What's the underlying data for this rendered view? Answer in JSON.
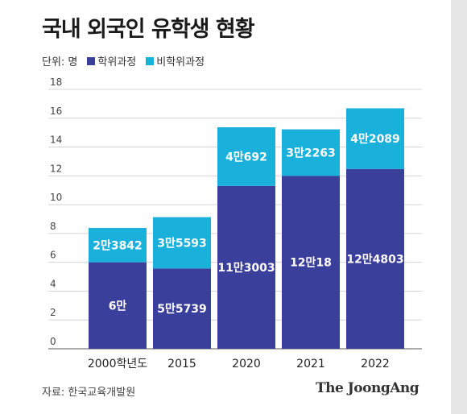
{
  "title": "국내 외국인 유학생 현황",
  "legend": {
    "unit": "단위: 명",
    "items": [
      {
        "label": "학위과정",
        "color": "#3a3f9c"
      },
      {
        "label": "비학위과정",
        "color": "#1ab0dc"
      }
    ]
  },
  "source": "자료: 한국교육개발원",
  "brand": "The JoongAng",
  "chart_data": {
    "type": "bar",
    "stacked": true,
    "categories": [
      "2000학년도",
      "2015",
      "2020",
      "2021",
      "2022"
    ],
    "series": [
      {
        "name": "학위과정",
        "color": "#3a3f9c",
        "values": [
          6.0,
          5.5739,
          11.3003,
          12.0018,
          12.4803
        ],
        "labels": [
          "6만",
          "5만5739",
          "11만3003",
          "12만18",
          "12만4803"
        ]
      },
      {
        "name": "비학위과정",
        "color": "#1ab0dc",
        "values": [
          2.3842,
          3.5593,
          4.0692,
          3.2263,
          4.2089
        ],
        "labels": [
          "2만3842",
          "3만5593",
          "4만692",
          "3만2263",
          "4만2089"
        ]
      }
    ],
    "yticks": [
      0,
      2,
      4,
      6,
      8,
      10,
      12,
      14,
      16,
      18
    ],
    "ylim": [
      0,
      18
    ],
    "grid": true
  }
}
